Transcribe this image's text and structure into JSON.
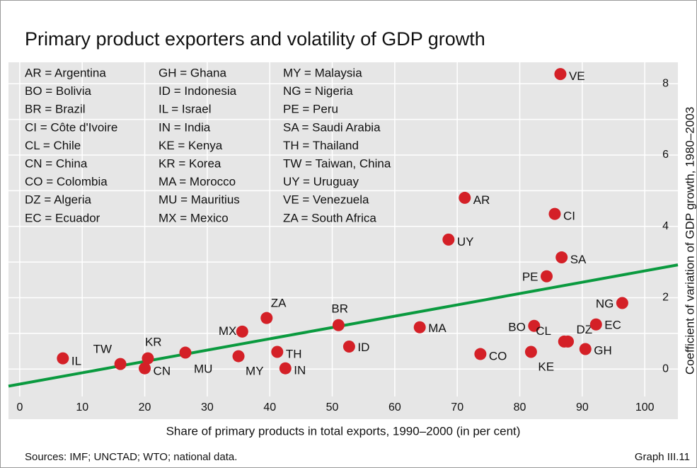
{
  "chart_data": {
    "type": "scatter",
    "title": "Primary product exporters and volatility of GDP growth",
    "xlabel": "Share of primary products in total exports, 1990–2000 (in per cent)",
    "ylabel": "Coefficient of variation of GDP growth, 1980–2003",
    "source": "Sources: IMF; UNCTAD; WTO; national data.",
    "graph_id": "Graph III.11",
    "xlim": [
      -1.8,
      105.3
    ],
    "ylim": [
      -0.77,
      8.6
    ],
    "xticks": [
      0,
      10,
      20,
      30,
      40,
      50,
      60,
      70,
      80,
      90,
      100
    ],
    "yticks": [
      0,
      2,
      4,
      6,
      8
    ],
    "grid": true,
    "color": "#d42027",
    "labels": [
      "IL",
      "TW",
      "KR",
      "CN",
      "MU",
      "MX",
      "MY",
      "ZA",
      "TH",
      "IN",
      "BR",
      "ID",
      "MA",
      "UY",
      "AR",
      "CO",
      "PE",
      "CI",
      "VE",
      "SA",
      "BO",
      "KE",
      "CL",
      "DZ",
      "GH",
      "EC",
      "NG"
    ],
    "x": [
      6.9,
      16.1,
      20.5,
      20.0,
      26.5,
      35.6,
      35.0,
      39.5,
      41.2,
      42.5,
      51.0,
      52.7,
      64.0,
      68.6,
      71.2,
      73.7,
      84.3,
      85.6,
      86.5,
      86.7,
      82.3,
      81.8,
      87.1,
      87.7,
      90.5,
      92.2,
      96.4
    ],
    "values": [
      0.3,
      0.14,
      0.3,
      0.02,
      0.46,
      1.05,
      0.36,
      1.43,
      0.48,
      0.02,
      1.23,
      0.63,
      1.17,
      3.63,
      4.8,
      0.42,
      2.6,
      4.35,
      8.27,
      3.13,
      1.21,
      0.48,
      0.77,
      0.77,
      0.56,
      1.25,
      1.85
    ],
    "trend_line": {
      "color": "#0a9a3f",
      "x": [
        -1.8,
        105.3
      ],
      "values": [
        -0.48,
        2.92
      ]
    },
    "legend": [
      [
        "AR = Argentina",
        "BO = Bolivia",
        "BR = Brazil",
        "CI = Côte d'Ivoire",
        "CL = Chile",
        "CN = China",
        "CO = Colombia",
        "DZ = Algeria",
        "EC = Ecuador"
      ],
      [
        "GH = Ghana",
        "ID = Indonesia",
        "IL = Israel",
        "IN = India",
        "KE = Kenya",
        "KR = Korea",
        "MA = Morocco",
        "MU = Mauritius",
        "MX = Mexico"
      ],
      [
        "MY = Malaysia",
        "NG = Nigeria",
        "PE = Peru",
        "SA = Saudi Arabia",
        "TH = Thailand",
        "TW = Taiwan, China",
        "UY = Uruguay",
        "VE = Venezuela",
        "ZA = South Africa"
      ]
    ]
  }
}
